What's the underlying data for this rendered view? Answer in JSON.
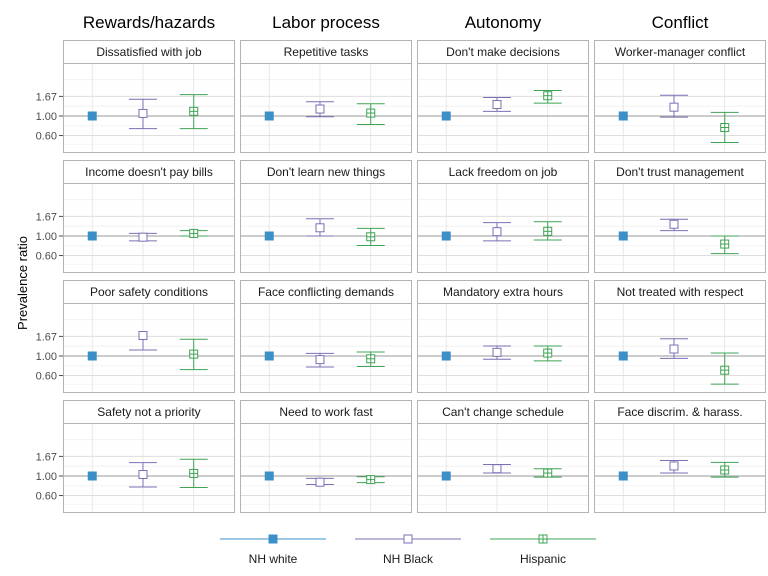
{
  "chart_data": {
    "type": "scatter",
    "subtype": "point-with-error-bars",
    "ylabel": "Prevalence ratio",
    "y_scale": "log",
    "y_ticks": [
      0.6,
      1.0,
      1.67
    ],
    "y_tick_labels": [
      "0.60",
      "1.00",
      "1.67"
    ],
    "ylim": [
      0.38,
      4.0
    ],
    "reference_line": 1.0,
    "grid": true,
    "groups": [
      "NH white",
      "NH Black",
      "Hispanic"
    ],
    "colors": {
      "NH white": "#3d8fc7",
      "NH Black": "#7b6fb5",
      "Hispanic": "#3fa354"
    },
    "legend_position": "bottom",
    "columns": [
      {
        "title": "Rewards/hazards",
        "panels": [
          {
            "label": "Dissatisfied with job",
            "estimates": [
              {
                "group": "NH white",
                "value": 1.0,
                "lower": null,
                "upper": null
              },
              {
                "group": "NH Black",
                "value": 1.07,
                "lower": 0.72,
                "upper": 1.55
              },
              {
                "group": "Hispanic",
                "value": 1.13,
                "lower": 0.72,
                "upper": 1.75
              }
            ]
          },
          {
            "label": "Income doesn't pay bills",
            "estimates": [
              {
                "group": "NH white",
                "value": 1.0,
                "lower": null,
                "upper": null
              },
              {
                "group": "NH Black",
                "value": 0.97,
                "lower": 0.88,
                "upper": 1.07
              },
              {
                "group": "Hispanic",
                "value": 1.07,
                "lower": 1.0,
                "upper": 1.15
              }
            ]
          },
          {
            "label": "Poor safety conditions",
            "estimates": [
              {
                "group": "NH white",
                "value": 1.0,
                "lower": null,
                "upper": null
              },
              {
                "group": "NH Black",
                "value": 1.71,
                "lower": 1.17,
                "upper": null
              },
              {
                "group": "Hispanic",
                "value": 1.05,
                "lower": 0.7,
                "upper": 1.55
              }
            ]
          },
          {
            "label": "Safety not a priority",
            "estimates": [
              {
                "group": "NH white",
                "value": 1.0,
                "lower": null,
                "upper": null
              },
              {
                "group": "NH Black",
                "value": 1.04,
                "lower": 0.75,
                "upper": 1.42
              },
              {
                "group": "Hispanic",
                "value": 1.07,
                "lower": 0.74,
                "upper": 1.55
              }
            ]
          }
        ]
      },
      {
        "title": "Labor process",
        "panels": [
          {
            "label": "Repetitive tasks",
            "estimates": [
              {
                "group": "NH white",
                "value": 1.0,
                "lower": null,
                "upper": null
              },
              {
                "group": "NH Black",
                "value": 1.2,
                "lower": 0.98,
                "upper": 1.45
              },
              {
                "group": "Hispanic",
                "value": 1.08,
                "lower": 0.8,
                "upper": 1.38
              }
            ]
          },
          {
            "label": "Don't learn new things",
            "estimates": [
              {
                "group": "NH white",
                "value": 1.0,
                "lower": null,
                "upper": null
              },
              {
                "group": "NH Black",
                "value": 1.24,
                "lower": 1.0,
                "upper": 1.57
              },
              {
                "group": "Hispanic",
                "value": 0.98,
                "lower": 0.78,
                "upper": 1.22
              }
            ]
          },
          {
            "label": "Face conflicting demands",
            "estimates": [
              {
                "group": "NH white",
                "value": 1.0,
                "lower": null,
                "upper": null
              },
              {
                "group": "NH Black",
                "value": 0.91,
                "lower": 0.75,
                "upper": 1.07
              },
              {
                "group": "Hispanic",
                "value": 0.93,
                "lower": 0.76,
                "upper": 1.11
              }
            ]
          },
          {
            "label": "Need to work fast",
            "estimates": [
              {
                "group": "NH white",
                "value": 1.0,
                "lower": null,
                "upper": null
              },
              {
                "group": "NH Black",
                "value": 0.85,
                "lower": 0.8,
                "upper": 0.94
              },
              {
                "group": "Hispanic",
                "value": 0.91,
                "lower": 0.84,
                "upper": 0.98
              }
            ]
          }
        ]
      },
      {
        "title": "Autonomy",
        "panels": [
          {
            "label": "Don't make decisions",
            "estimates": [
              {
                "group": "NH white",
                "value": 1.0,
                "lower": null,
                "upper": null
              },
              {
                "group": "NH Black",
                "value": 1.35,
                "lower": 1.13,
                "upper": 1.62
              },
              {
                "group": "Hispanic",
                "value": 1.7,
                "lower": 1.4,
                "upper": 1.95
              }
            ]
          },
          {
            "label": "Lack freedom on job",
            "estimates": [
              {
                "group": "NH white",
                "value": 1.0,
                "lower": null,
                "upper": null
              },
              {
                "group": "NH Black",
                "value": 1.12,
                "lower": 0.88,
                "upper": 1.42
              },
              {
                "group": "Hispanic",
                "value": 1.13,
                "lower": 0.9,
                "upper": 1.45
              }
            ]
          },
          {
            "label": "Mandatory extra hours",
            "estimates": [
              {
                "group": "NH white",
                "value": 1.0,
                "lower": null,
                "upper": null
              },
              {
                "group": "NH Black",
                "value": 1.1,
                "lower": 0.92,
                "upper": 1.3
              },
              {
                "group": "Hispanic",
                "value": 1.08,
                "lower": 0.88,
                "upper": 1.3
              }
            ]
          },
          {
            "label": "Can't change schedule",
            "estimates": [
              {
                "group": "NH white",
                "value": 1.0,
                "lower": null,
                "upper": null
              },
              {
                "group": "NH Black",
                "value": 1.21,
                "lower": 1.08,
                "upper": 1.35
              },
              {
                "group": "Hispanic",
                "value": 1.08,
                "lower": 0.97,
                "upper": 1.21
              }
            ]
          }
        ]
      },
      {
        "title": "Conflict",
        "panels": [
          {
            "label": "Worker-manager conflict",
            "estimates": [
              {
                "group": "NH white",
                "value": 1.0,
                "lower": null,
                "upper": null
              },
              {
                "group": "NH Black",
                "value": 1.26,
                "lower": 0.97,
                "upper": 1.72
              },
              {
                "group": "Hispanic",
                "value": 0.74,
                "lower": 0.5,
                "upper": 1.1
              }
            ]
          },
          {
            "label": "Don't trust management",
            "estimates": [
              {
                "group": "NH white",
                "value": 1.0,
                "lower": null,
                "upper": null
              },
              {
                "group": "NH Black",
                "value": 1.36,
                "lower": 1.15,
                "upper": 1.55
              },
              {
                "group": "Hispanic",
                "value": 0.81,
                "lower": 0.63,
                "upper": 1.0
              }
            ]
          },
          {
            "label": "Not treated with respect",
            "estimates": [
              {
                "group": "NH white",
                "value": 1.0,
                "lower": null,
                "upper": null
              },
              {
                "group": "NH Black",
                "value": 1.2,
                "lower": 0.94,
                "upper": 1.57
              },
              {
                "group": "Hispanic",
                "value": 0.69,
                "lower": 0.48,
                "upper": 1.08
              }
            ]
          },
          {
            "label": "Face discrim. & harass.",
            "estimates": [
              {
                "group": "NH white",
                "value": 1.0,
                "lower": null,
                "upper": null
              },
              {
                "group": "NH Black",
                "value": 1.3,
                "lower": 1.08,
                "upper": 1.5
              },
              {
                "group": "Hispanic",
                "value": 1.17,
                "lower": 0.97,
                "upper": 1.43
              }
            ]
          }
        ]
      }
    ]
  }
}
